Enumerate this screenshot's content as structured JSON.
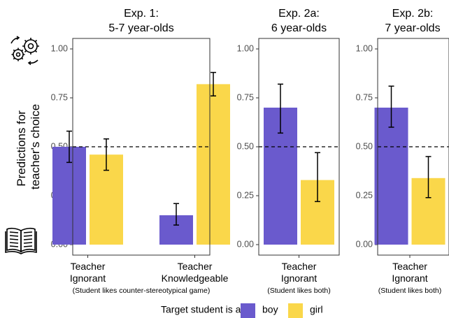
{
  "chart_data": [
    {
      "type": "bar",
      "title": [
        "Exp. 1:",
        "5-7 year-olds"
      ],
      "categories": [
        {
          "label": [
            "Teacher",
            "Ignorant"
          ]
        },
        {
          "label": [
            "Teacher",
            "Knowledgeable"
          ]
        }
      ],
      "category_note": "(Student likes counter-stereotypical game)",
      "series": [
        {
          "name": "boy",
          "values": [
            0.5,
            0.15
          ],
          "err_low": [
            0.42,
            0.1
          ],
          "err_high": [
            0.58,
            0.21
          ]
        },
        {
          "name": "girl",
          "values": [
            0.46,
            0.82
          ],
          "err_low": [
            0.38,
            0.76
          ],
          "err_high": [
            0.54,
            0.88
          ]
        }
      ],
      "ylim": [
        0,
        1
      ],
      "yticks": [
        "0.00",
        "0.25",
        "0.50",
        "0.75",
        "1.00"
      ],
      "reference_line": 0.5
    },
    {
      "type": "bar",
      "title": [
        "Exp. 2a:",
        "6 year-olds"
      ],
      "categories": [
        {
          "label": [
            "Teacher",
            "Ignorant"
          ]
        }
      ],
      "category_note": "(Student likes both)",
      "series": [
        {
          "name": "boy",
          "values": [
            0.7
          ],
          "err_low": [
            0.57
          ],
          "err_high": [
            0.82
          ]
        },
        {
          "name": "girl",
          "values": [
            0.33
          ],
          "err_low": [
            0.22
          ],
          "err_high": [
            0.47
          ]
        }
      ],
      "ylim": [
        0,
        1
      ],
      "yticks": [
        "0.00",
        "0.25",
        "0.50",
        "0.75",
        "1.00"
      ],
      "reference_line": 0.5
    },
    {
      "type": "bar",
      "title": [
        "Exp. 2b:",
        "7 year-olds"
      ],
      "categories": [
        {
          "label": [
            "Teacher",
            "Ignorant"
          ]
        }
      ],
      "category_note": "(Student likes both)",
      "series": [
        {
          "name": "boy",
          "values": [
            0.7
          ],
          "err_low": [
            0.6
          ],
          "err_high": [
            0.81
          ]
        },
        {
          "name": "girl",
          "values": [
            0.34
          ],
          "err_low": [
            0.24
          ],
          "err_high": [
            0.45
          ]
        }
      ],
      "ylim": [
        0,
        1
      ],
      "yticks": [
        "0.00",
        "0.25",
        "0.50",
        "0.75",
        "1.00"
      ],
      "reference_line": 0.5
    }
  ],
  "ylabel": [
    "Predictions for",
    "teacher's choice"
  ],
  "legend": {
    "title": "Target student is a:",
    "entries": [
      {
        "name": "boy",
        "color": "#6A5ACD"
      },
      {
        "name": "girl",
        "color": "#FAD74A"
      }
    ]
  },
  "colors": {
    "boy": "#6A5ACD",
    "girl": "#FAD74A"
  },
  "icons": {
    "top": "gears-icon",
    "bottom": "open-book-icon"
  }
}
